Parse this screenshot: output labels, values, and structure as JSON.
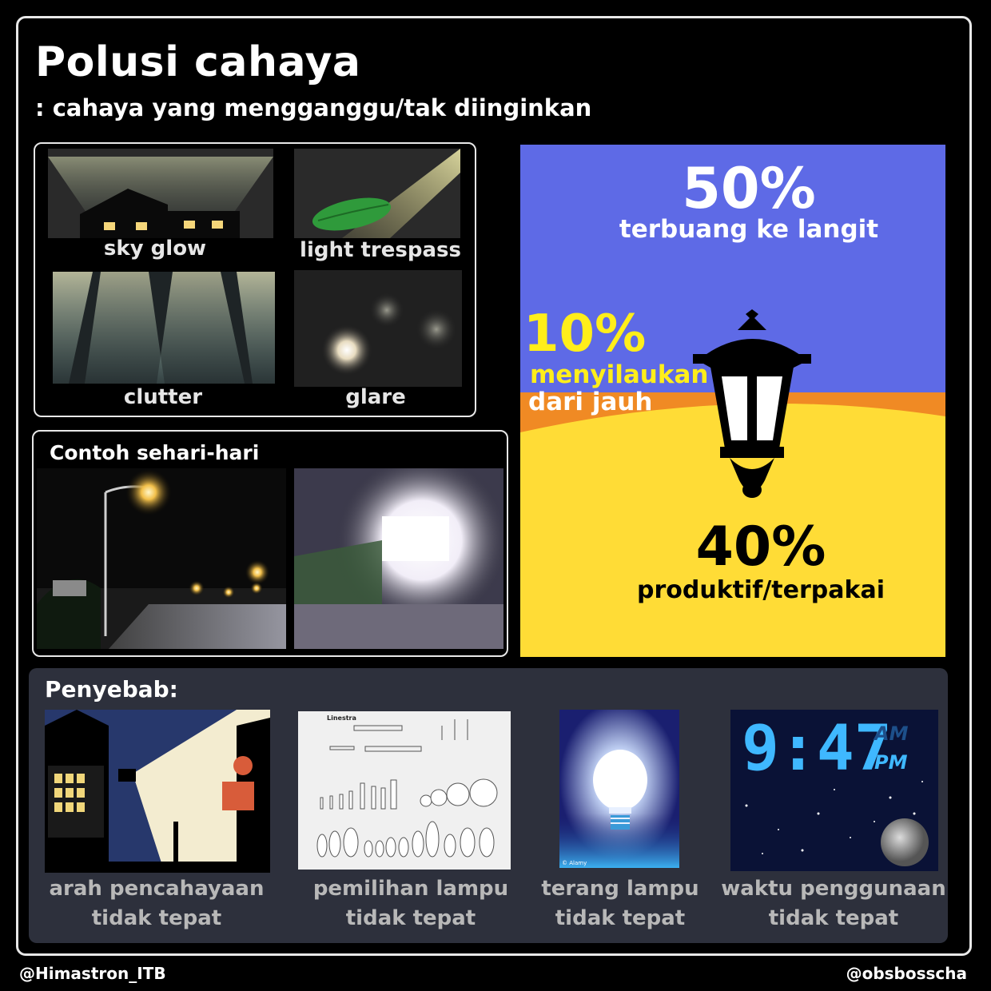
{
  "header": {
    "title": "Polusi cahaya",
    "subtitle": ": cahaya yang mengganggu/tak diinginkan"
  },
  "types": [
    {
      "label": "sky glow",
      "icon": "sky-glow-illustration"
    },
    {
      "label": "light trespass",
      "icon": "light-trespass-illustration"
    },
    {
      "label": "clutter",
      "icon": "clutter-illustration"
    },
    {
      "label": "glare",
      "icon": "glare-illustration"
    }
  ],
  "examples": {
    "title": "Contoh sehari-hari"
  },
  "lamp_infographic": {
    "sky": {
      "value": "50%",
      "label": "terbuang ke langit"
    },
    "glare": {
      "value": "10%",
      "label_line1": "menyilaukan",
      "label_line2": "dari jauh"
    },
    "ground": {
      "value": "40%",
      "label": "produktif/terpakai"
    },
    "colors": {
      "sky": "#5e6ae6",
      "horizon": "#f08a24",
      "ground": "#ffdc36",
      "highlight": "#ffee1a"
    }
  },
  "causes": {
    "title": "Penyebab:",
    "items": [
      {
        "line1": "arah pencahayaan",
        "line2": "tidak tepat"
      },
      {
        "line1": "pemilihan lampu",
        "line2": "tidak tepat"
      },
      {
        "line1": "terang lampu",
        "line2": "tidak tepat"
      },
      {
        "line1": "waktu penggunaan",
        "line2": "tidak tepat"
      }
    ],
    "bulb_chart_title": "Linestra",
    "bulb_credit": "© Alamy",
    "clock": {
      "time": "9:47",
      "am": "AM",
      "pm": "PM"
    }
  },
  "footer": {
    "left": "@Himastron_ITB",
    "right": "@obsbosscha"
  }
}
